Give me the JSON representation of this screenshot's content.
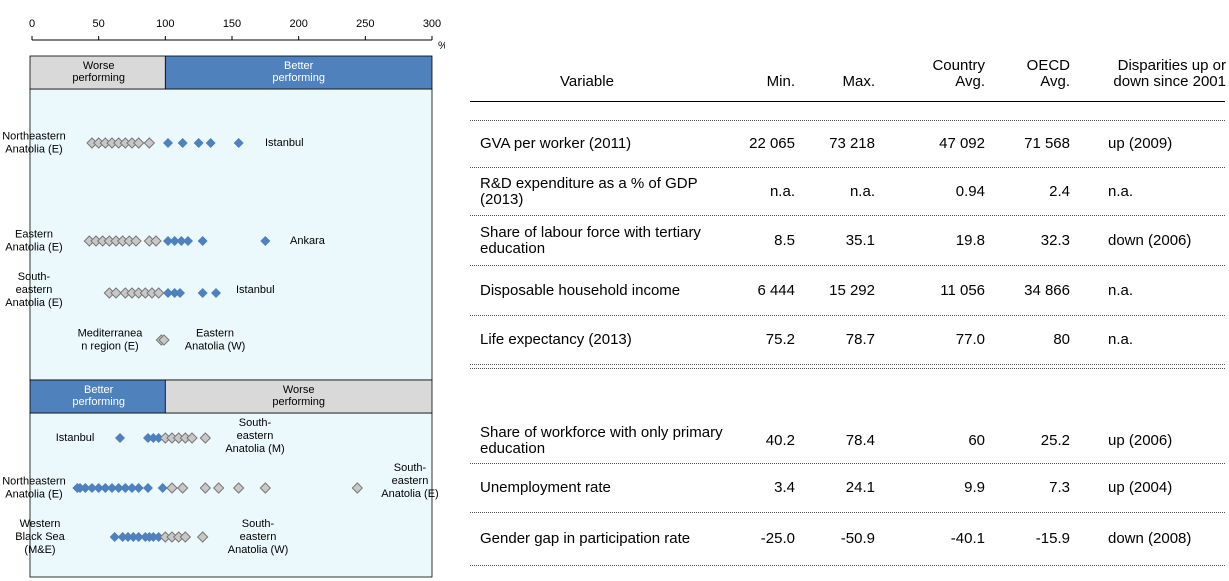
{
  "chart_data": {
    "type": "strip",
    "xlim": [
      0,
      300
    ],
    "xticks": [
      0,
      50,
      100,
      150,
      200,
      250,
      300
    ],
    "x_unit": "%",
    "colors": [
      "#d9d9d9",
      "#4f81bd"
    ],
    "panels": [
      {
        "split": 100,
        "headers": [
          "Worse performing",
          "Better performing"
        ],
        "rows": [
          {
            "values": [
              45,
              50,
              55,
              60,
              65,
              70,
              75,
              80,
              88,
              102,
              113,
              125,
              134,
              155
            ],
            "min_label": [
              "Northeastern",
              "Anatolia (E)"
            ],
            "max_label": [
              "Istanbul"
            ]
          },
          {
            "values": []
          },
          {
            "values": [
              43,
              48,
              53,
              58,
              63,
              68,
              73,
              78,
              88,
              93,
              102,
              107,
              112,
              117,
              128,
              175
            ],
            "min_label": [
              "Eastern",
              "Anatolia (E)"
            ],
            "max_label": [
              "Ankara"
            ]
          },
          {
            "values": [
              58,
              63,
              70,
              75,
              80,
              85,
              90,
              95,
              102,
              107,
              111,
              128,
              138
            ],
            "min_label": [
              "South-",
              "eastern",
              "Anatolia (E)"
            ],
            "max_label": [
              "Istanbul"
            ]
          },
          {
            "values": [
              97,
              99
            ],
            "min_label": [
              "Mediterranea",
              "n region (E)"
            ],
            "max_label": [
              "Eastern",
              "Anatolia (W)"
            ]
          }
        ]
      },
      {
        "split": 100,
        "headers": [
          "Better performing",
          "Worse performing"
        ],
        "rows": [
          {
            "values": [
              66,
              87,
              91,
              95,
              100,
              105,
              110,
              115,
              120,
              130
            ],
            "min_label": [
              "Istanbul"
            ],
            "max_label": [
              "South-",
              "eastern",
              "Anatolia (M)"
            ]
          },
          {
            "values": [
              34,
              36,
              40,
              45,
              50,
              55,
              60,
              65,
              70,
              75,
              80,
              87,
              98,
              105,
              113,
              130,
              140,
              155,
              175,
              244
            ],
            "min_label": [
              "Northeastern",
              "Anatolia (E)"
            ],
            "max_label": [
              "South-",
              "eastern",
              "Anatolia  (E)"
            ]
          },
          {
            "values": [
              62,
              68,
              72,
              76,
              80,
              85,
              88,
              91,
              95,
              100,
              105,
              110,
              115,
              128
            ],
            "min_label": [
              "Western",
              "Black Sea",
              "(M&E)"
            ],
            "max_label": [
              "South-",
              "eastern",
              "Anatolia (W)"
            ]
          }
        ]
      }
    ]
  },
  "table": {
    "header": [
      "Variable",
      "Min.",
      "Max.",
      "Country Avg.",
      "OECD Avg.",
      "Disparities up or down since 2001"
    ],
    "rows": [
      [
        "GVA per worker (2011)",
        "22 065",
        "73 218",
        "47 092",
        "71 568",
        "up (2009)"
      ],
      [
        "R&D expenditure as a % of GDP (2013)",
        "n.a.",
        "n.a.",
        "0.94",
        "2.4",
        "n.a."
      ],
      [
        "Share of labour force with tertiary education",
        "8.5",
        "35.1",
        "19.8",
        "32.3",
        "down (2006)"
      ],
      [
        "Disposable household income",
        "6 444",
        "15 292",
        "11 056",
        "34 866",
        "n.a."
      ],
      [
        "Life expectancy (2013)",
        "75.2",
        "78.7",
        "77.0",
        "80",
        "n.a."
      ],
      [
        "Share of workforce with only primary education",
        "40.2",
        "78.4",
        "60",
        "25.2",
        "up (2006)"
      ],
      [
        "Unemployment rate",
        "3.4",
        "24.1",
        "9.9",
        "7.3",
        "up (2004)"
      ],
      [
        "Gender gap in participation rate",
        "-25.0",
        "-50.9",
        "-40.1",
        "-15.9",
        "down (2008)"
      ]
    ]
  }
}
